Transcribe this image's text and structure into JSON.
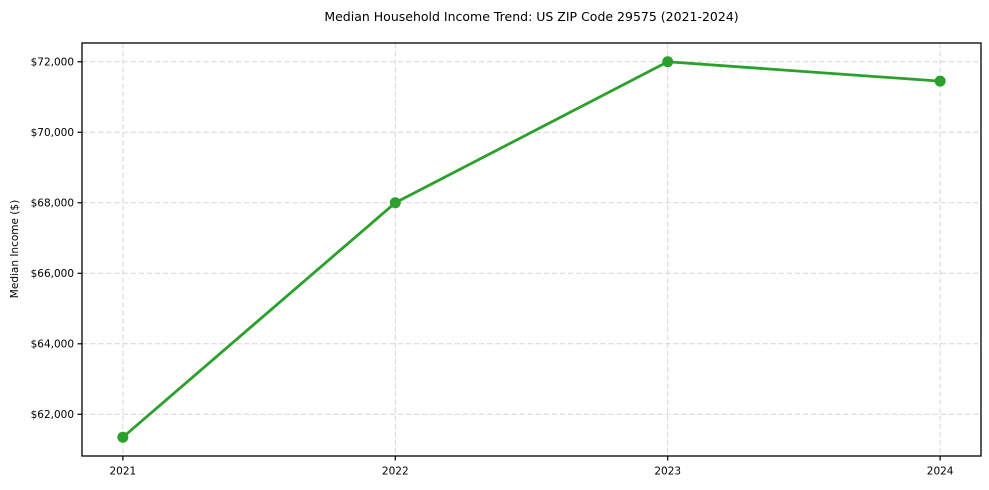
{
  "chart_data": {
    "type": "line",
    "title": "Median Household Income Trend: US ZIP Code 29575 (2021-2024)",
    "ylabel": "Median Income ($)",
    "xlabel": "",
    "x": [
      2021,
      2022,
      2023,
      2024
    ],
    "x_tick_labels": [
      "2021",
      "2022",
      "2023",
      "2024"
    ],
    "series": [
      {
        "name": "median-household-income",
        "values": [
          61350,
          68000,
          72000,
          71450
        ],
        "color": "#2ca02c",
        "marker": "circle"
      }
    ],
    "yticks": [
      {
        "value": 62000,
        "label": "$62,000"
      },
      {
        "value": 64000,
        "label": "$64,000"
      },
      {
        "value": 66000,
        "label": "$66,000"
      },
      {
        "value": 68000,
        "label": "$68,000"
      },
      {
        "value": 70000,
        "label": "$70,000"
      },
      {
        "value": 72000,
        "label": "$72,000"
      }
    ],
    "ylim": [
      60817.5,
      72532.5
    ],
    "xlim": [
      2020.85,
      2024.15
    ],
    "grid": true,
    "grid_line_style": "dashed",
    "legend_position": "none",
    "colors": {
      "background": "#ffffff",
      "grid": "#d6d6d6",
      "spine": "#000000",
      "text": "#000000",
      "line": "#2ca02c"
    }
  }
}
